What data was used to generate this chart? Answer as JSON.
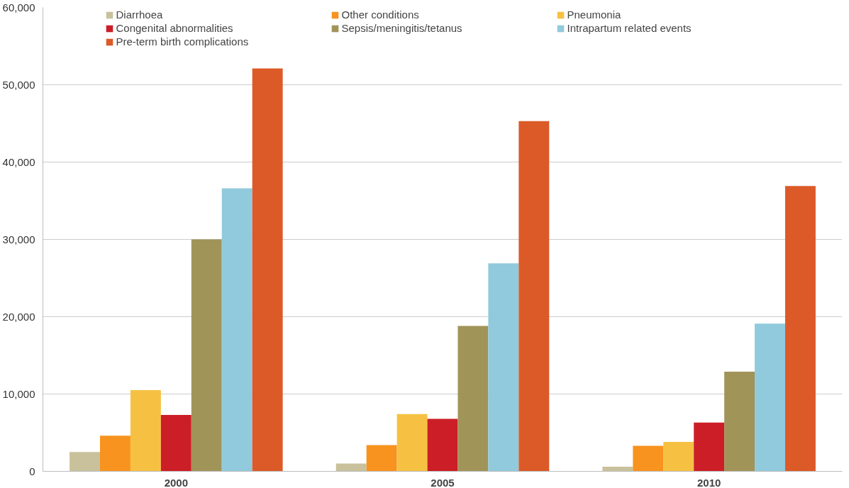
{
  "chart_data": {
    "type": "bar",
    "categories": [
      "2000",
      "2005",
      "2010"
    ],
    "series": [
      {
        "name": "Diarrhoea",
        "color": "#c9c19c",
        "values": [
          2500,
          1000,
          600
        ]
      },
      {
        "name": "Other conditions",
        "color": "#f7931e",
        "values": [
          4600,
          3400,
          3300
        ]
      },
      {
        "name": "Pneumonia",
        "color": "#f6c143",
        "values": [
          10500,
          7400,
          3800
        ]
      },
      {
        "name": "Congenital abnormalities",
        "color": "#cc1e27",
        "values": [
          7300,
          6800,
          6300
        ]
      },
      {
        "name": "Sepsis/meningitis/tetanus",
        "color": "#a19459",
        "values": [
          30000,
          18800,
          12900
        ]
      },
      {
        "name": "Intrapartum related events",
        "color": "#90cadc",
        "values": [
          36600,
          26900,
          19100
        ]
      },
      {
        "name": "Pre-term birth complications",
        "color": "#dc5a28",
        "values": [
          52100,
          45300,
          36900
        ]
      }
    ],
    "ylim": [
      0,
      60000
    ],
    "yticks": [
      {
        "value": 0,
        "label": "0"
      },
      {
        "value": 10000,
        "label": "10,000"
      },
      {
        "value": 20000,
        "label": "20,000"
      },
      {
        "value": 30000,
        "label": "30,000"
      },
      {
        "value": 40000,
        "label": "40,000"
      },
      {
        "value": 50000,
        "label": "50,000"
      },
      {
        "value": 60000,
        "label": "60,000"
      }
    ],
    "grid": "y",
    "legend": "top"
  }
}
